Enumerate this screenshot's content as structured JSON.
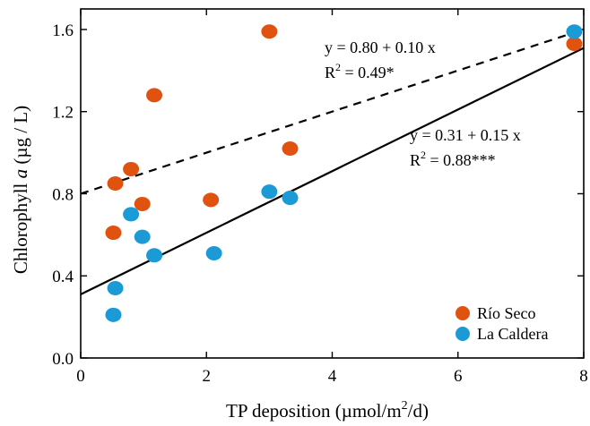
{
  "chart_data": {
    "type": "scatter",
    "xlabel": "TP deposition (µmol/m",
    "xlabel_sup": "2",
    "xlabel_tail": "/d)",
    "ylabel_prefix": "Chlorophyll ",
    "ylabel_italic": "a",
    "ylabel_suffix": " (µg / L)",
    "xlim": [
      0,
      8
    ],
    "ylim": [
      0,
      1.7
    ],
    "xticks": [
      0,
      2,
      4,
      6,
      8
    ],
    "xtick_labels": [
      "0",
      "2",
      "4",
      "6",
      "8"
    ],
    "yticks": [
      0,
      0.4,
      0.8,
      1.2,
      1.6
    ],
    "ytick_labels": [
      "0.0",
      "0.4",
      "0.8",
      "1.2",
      "1.6"
    ],
    "legend_position": "bottom-right",
    "series": [
      {
        "name": "Río Seco",
        "color": "#e0520f",
        "points": [
          {
            "x": 0.52,
            "y": 0.61
          },
          {
            "x": 0.55,
            "y": 0.85
          },
          {
            "x": 0.8,
            "y": 0.92
          },
          {
            "x": 0.98,
            "y": 0.75
          },
          {
            "x": 1.17,
            "y": 1.28
          },
          {
            "x": 2.07,
            "y": 0.77
          },
          {
            "x": 3.0,
            "y": 1.59
          },
          {
            "x": 3.33,
            "y": 1.02
          },
          {
            "x": 7.85,
            "y": 1.53
          }
        ]
      },
      {
        "name": "La Caldera",
        "color": "#1b9ad6",
        "points": [
          {
            "x": 0.52,
            "y": 0.21
          },
          {
            "x": 0.55,
            "y": 0.34
          },
          {
            "x": 0.8,
            "y": 0.7
          },
          {
            "x": 0.98,
            "y": 0.59
          },
          {
            "x": 1.17,
            "y": 0.5
          },
          {
            "x": 2.12,
            "y": 0.51
          },
          {
            "x": 3.0,
            "y": 0.81
          },
          {
            "x": 3.33,
            "y": 0.78
          },
          {
            "x": 7.85,
            "y": 1.59
          }
        ]
      }
    ],
    "fits": [
      {
        "style": "dashed",
        "intercept": 0.8,
        "slope": 0.1,
        "equation": "y = 0.80 + 0.10 x",
        "r2_prefix": "R",
        "r2_sup": "2",
        "r2_value": " = 0.49*"
      },
      {
        "style": "solid",
        "intercept": 0.31,
        "slope": 0.15,
        "equation": "y = 0.31 + 0.15 x",
        "r2_prefix": "R",
        "r2_sup": "2",
        "r2_value": " = 0.88***"
      }
    ]
  }
}
